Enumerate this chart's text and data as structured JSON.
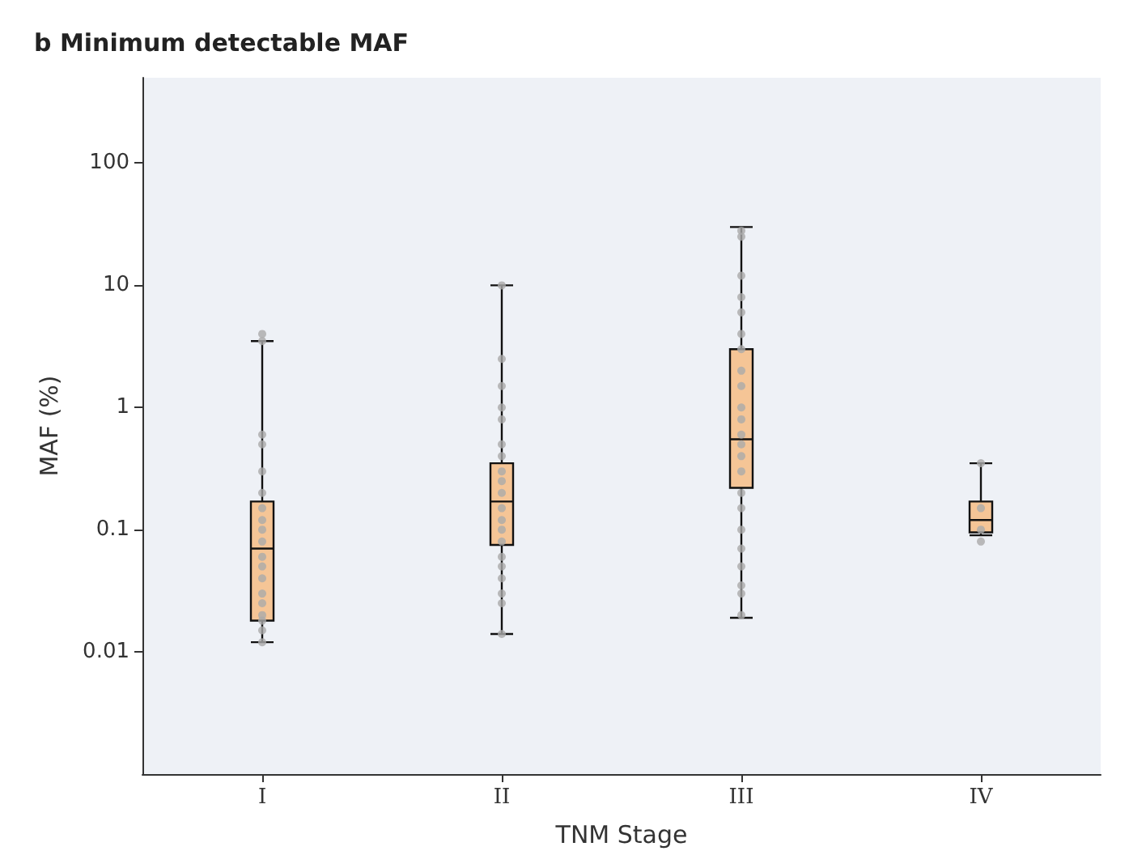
{
  "chart_data": {
    "type": "box",
    "title": "b Minimum detectable MAF",
    "xlabel": "TNM Stage",
    "ylabel": "MAF (%)",
    "log": true,
    "categories": [
      "I",
      "II",
      "III",
      "IV"
    ],
    "ylim": [
      0.001,
      500
    ],
    "yticks": [
      0.01,
      0.1,
      1,
      10,
      100
    ],
    "series": [
      {
        "color": "#f5c596",
        "boxes": [
          {
            "low": 0.012,
            "q1": 0.018,
            "median": 0.07,
            "q3": 0.17,
            "high": 3.5
          },
          {
            "low": 0.014,
            "q1": 0.075,
            "median": 0.17,
            "q3": 0.35,
            "high": 10
          },
          {
            "low": 0.019,
            "q1": 0.22,
            "median": 0.55,
            "q3": 3,
            "high": 30
          },
          {
            "low": 0.09,
            "q1": 0.095,
            "median": 0.12,
            "q3": 0.17,
            "high": 0.35
          }
        ]
      },
      {
        "type": "scatter",
        "color": "#aaaaaa",
        "x": [
          "I",
          "I",
          "I",
          "I",
          "I",
          "I",
          "I",
          "I",
          "I",
          "I",
          "I",
          "I",
          "I",
          "I",
          "I",
          "I",
          "I",
          "I",
          "I",
          "II",
          "II",
          "II",
          "II",
          "II",
          "II",
          "II",
          "II",
          "II",
          "II",
          "II",
          "II",
          "II",
          "II",
          "II",
          "II",
          "II",
          "II",
          "II",
          "II",
          "III",
          "III",
          "III",
          "III",
          "III",
          "III",
          "III",
          "III",
          "III",
          "III",
          "III",
          "III",
          "III",
          "III",
          "III",
          "III",
          "III",
          "III",
          "III",
          "III",
          "III",
          "III",
          "III",
          "IV",
          "IV",
          "IV",
          "IV"
        ],
        "values": [
          0.5,
          0.3,
          0.2,
          0.15,
          0.12,
          0.1,
          0.08,
          0.06,
          0.05,
          0.04,
          0.03,
          0.025,
          0.02,
          0.018,
          0.015,
          0.012,
          0.6,
          3.5,
          4,
          10,
          2.5,
          1.5,
          1,
          0.8,
          0.5,
          0.4,
          0.3,
          0.25,
          0.2,
          0.15,
          0.12,
          0.1,
          0.08,
          0.06,
          0.05,
          0.04,
          0.03,
          0.025,
          0.014,
          28,
          25,
          12,
          8,
          6,
          4,
          3,
          2,
          1.5,
          1,
          0.8,
          0.6,
          0.5,
          0.4,
          0.3,
          0.2,
          0.15,
          0.1,
          0.07,
          0.05,
          0.035,
          0.03,
          0.02,
          0.35,
          0.15,
          0.1,
          0.08
        ]
      }
    ],
    "grid": false,
    "marker": "circle"
  }
}
